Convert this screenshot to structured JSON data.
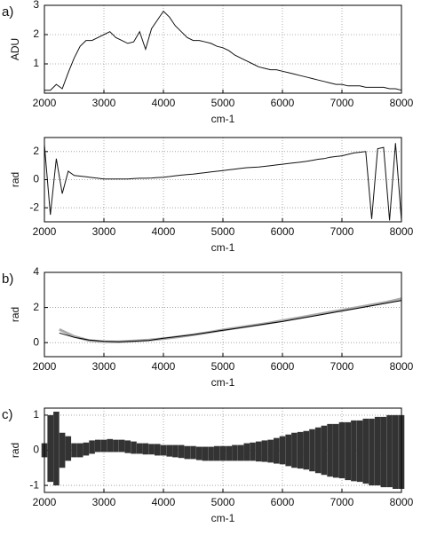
{
  "chart_data": [
    {
      "type": "line",
      "label": "a)",
      "xlabel": "cm-1",
      "ylabel": "ADU",
      "xlim": [
        2000,
        8000
      ],
      "xticks": [
        2000,
        3000,
        4000,
        5000,
        6000,
        7000,
        8000
      ],
      "ylim": [
        0,
        3
      ],
      "yticks": [
        1,
        2,
        3
      ],
      "grid": true,
      "x": [
        2000,
        2100,
        2200,
        2300,
        2400,
        2500,
        2600,
        2700,
        2800,
        2900,
        3000,
        3100,
        3200,
        3300,
        3400,
        3500,
        3600,
        3700,
        3800,
        3900,
        4000,
        4100,
        4200,
        4300,
        4400,
        4500,
        4600,
        4700,
        4800,
        4900,
        5000,
        5100,
        5200,
        5300,
        5400,
        5500,
        5600,
        5700,
        5800,
        5900,
        6000,
        6100,
        6200,
        6300,
        6400,
        6500,
        6600,
        6700,
        6800,
        6900,
        7000,
        7100,
        7200,
        7300,
        7400,
        7500,
        7600,
        7700,
        7800,
        7900,
        8000
      ],
      "series": [
        {
          "color": "#111111",
          "values": [
            0.1,
            0.1,
            0.3,
            0.15,
            0.7,
            1.2,
            1.6,
            1.8,
            1.8,
            1.9,
            2.0,
            2.1,
            1.9,
            1.8,
            1.7,
            1.75,
            2.1,
            1.5,
            2.2,
            2.5,
            2.8,
            2.6,
            2.3,
            2.1,
            1.9,
            1.8,
            1.8,
            1.75,
            1.7,
            1.6,
            1.55,
            1.45,
            1.3,
            1.2,
            1.1,
            1.0,
            0.9,
            0.85,
            0.8,
            0.8,
            0.75,
            0.7,
            0.65,
            0.6,
            0.55,
            0.5,
            0.45,
            0.4,
            0.35,
            0.3,
            0.3,
            0.25,
            0.25,
            0.25,
            0.2,
            0.2,
            0.2,
            0.2,
            0.15,
            0.15,
            0.1
          ]
        }
      ]
    },
    {
      "type": "line",
      "xlabel": "cm-1",
      "ylabel": "rad",
      "xlim": [
        2000,
        8000
      ],
      "xticks": [
        2000,
        3000,
        4000,
        5000,
        6000,
        7000,
        8000
      ],
      "ylim": [
        -3,
        3
      ],
      "yticks": [
        -2,
        0,
        2
      ],
      "grid": true,
      "x": [
        2000,
        2100,
        2200,
        2300,
        2400,
        2500,
        2600,
        2700,
        2800,
        2900,
        3000,
        3100,
        3200,
        3300,
        3400,
        3500,
        3600,
        3700,
        3800,
        3900,
        4000,
        4100,
        4200,
        4300,
        4400,
        4500,
        4600,
        4700,
        4800,
        4900,
        5000,
        5100,
        5200,
        5300,
        5400,
        5500,
        5600,
        5700,
        5800,
        5900,
        6000,
        6100,
        6200,
        6300,
        6400,
        6500,
        6600,
        6700,
        6800,
        6900,
        7000,
        7100,
        7200,
        7300,
        7400,
        7500,
        7600,
        7700,
        7800,
        7900,
        8000
      ],
      "series": [
        {
          "color": "#111111",
          "values": [
            2.5,
            -2.5,
            1.5,
            -1.0,
            0.6,
            0.3,
            0.25,
            0.2,
            0.15,
            0.1,
            0.05,
            0.05,
            0.05,
            0.05,
            0.05,
            0.08,
            0.1,
            0.1,
            0.12,
            0.15,
            0.18,
            0.22,
            0.28,
            0.32,
            0.36,
            0.4,
            0.45,
            0.5,
            0.55,
            0.6,
            0.65,
            0.7,
            0.75,
            0.8,
            0.85,
            0.88,
            0.9,
            0.95,
            1.0,
            1.05,
            1.1,
            1.15,
            1.2,
            1.25,
            1.3,
            1.38,
            1.45,
            1.5,
            1.6,
            1.65,
            1.7,
            1.8,
            1.9,
            1.95,
            2.0,
            -2.8,
            2.2,
            2.3,
            -2.9,
            2.6,
            -2.9
          ]
        }
      ]
    },
    {
      "type": "line",
      "label": "b)",
      "xlabel": "cm-1",
      "ylabel": "rad",
      "xlim": [
        2000,
        8000
      ],
      "xticks": [
        2000,
        3000,
        4000,
        5000,
        6000,
        7000,
        8000
      ],
      "ylim": [
        -0.8,
        4
      ],
      "yticks": [
        0,
        2,
        4
      ],
      "grid": true,
      "x": [
        2250,
        2500,
        2750,
        3000,
        3250,
        3500,
        3750,
        4000,
        4250,
        4500,
        4750,
        5000,
        5250,
        5500,
        5750,
        6000,
        6250,
        6500,
        6750,
        7000,
        7250,
        7500,
        7750,
        8000
      ],
      "series": [
        {
          "color": "#aaaaaa",
          "values": [
            0.75,
            0.35,
            0.12,
            0.05,
            0.05,
            0.1,
            0.15,
            0.22,
            0.33,
            0.45,
            0.58,
            0.72,
            0.85,
            0.98,
            1.1,
            1.25,
            1.4,
            1.55,
            1.7,
            1.85,
            2.0,
            2.15,
            2.3,
            2.5
          ]
        },
        {
          "color": "#000000",
          "values": [
            0.55,
            0.3,
            0.15,
            0.08,
            0.05,
            0.08,
            0.12,
            0.25,
            0.35,
            0.45,
            0.58,
            0.7,
            0.82,
            0.95,
            1.08,
            1.2,
            1.35,
            1.5,
            1.65,
            1.8,
            1.95,
            2.1,
            2.25,
            2.4
          ]
        }
      ]
    },
    {
      "type": "range",
      "label": "c)",
      "xlabel": "cm-1",
      "ylabel": "rad",
      "xlim": [
        2000,
        8000
      ],
      "xticks": [
        2000,
        3000,
        4000,
        5000,
        6000,
        7000,
        8000
      ],
      "ylim": [
        -1.2,
        1.2
      ],
      "yticks": [
        -1,
        0,
        1
      ],
      "grid": true,
      "color": "#333333",
      "x": [
        2000,
        2100,
        2200,
        2300,
        2400,
        2500,
        2600,
        2700,
        2800,
        2900,
        3000,
        3100,
        3200,
        3300,
        3400,
        3500,
        3600,
        3700,
        3800,
        3900,
        4000,
        4100,
        4200,
        4300,
        4400,
        4500,
        4600,
        4700,
        4800,
        4900,
        5000,
        5100,
        5200,
        5300,
        5400,
        5500,
        5600,
        5700,
        5800,
        5900,
        6000,
        6100,
        6200,
        6300,
        6400,
        6500,
        6600,
        6700,
        6800,
        6900,
        7000,
        7100,
        7200,
        7300,
        7400,
        7500,
        7600,
        7700,
        7800,
        7900,
        8000
      ],
      "series": [
        {
          "values": [
            -0.2,
            -0.9,
            -1.0,
            -0.5,
            -0.3,
            -0.2,
            -0.2,
            -0.15,
            -0.1,
            -0.05,
            -0.05,
            -0.05,
            -0.05,
            -0.05,
            -0.08,
            -0.1,
            -0.1,
            -0.12,
            -0.12,
            -0.15,
            -0.15,
            -0.18,
            -0.2,
            -0.22,
            -0.25,
            -0.25,
            -0.28,
            -0.3,
            -0.3,
            -0.3,
            -0.3,
            -0.3,
            -0.3,
            -0.3,
            -0.3,
            -0.3,
            -0.32,
            -0.33,
            -0.35,
            -0.38,
            -0.4,
            -0.45,
            -0.5,
            -0.52,
            -0.55,
            -0.6,
            -0.65,
            -0.7,
            -0.75,
            -0.78,
            -0.8,
            -0.85,
            -0.88,
            -0.9,
            -0.95,
            -1.0,
            -1.0,
            -1.05,
            -1.05,
            -1.1,
            -1.1
          ]
        },
        {
          "values": [
            0.2,
            1.0,
            1.1,
            0.5,
            0.4,
            0.2,
            0.2,
            0.22,
            0.28,
            0.3,
            0.3,
            0.32,
            0.3,
            0.3,
            0.28,
            0.25,
            0.2,
            0.2,
            0.18,
            0.18,
            0.15,
            0.15,
            0.15,
            0.15,
            0.12,
            0.12,
            0.1,
            0.1,
            0.1,
            0.12,
            0.12,
            0.12,
            0.15,
            0.15,
            0.2,
            0.22,
            0.25,
            0.28,
            0.3,
            0.35,
            0.4,
            0.45,
            0.5,
            0.52,
            0.55,
            0.6,
            0.65,
            0.7,
            0.75,
            0.75,
            0.8,
            0.8,
            0.85,
            0.85,
            0.9,
            0.9,
            0.95,
            0.95,
            1.0,
            1.0,
            1.0
          ]
        }
      ]
    }
  ]
}
